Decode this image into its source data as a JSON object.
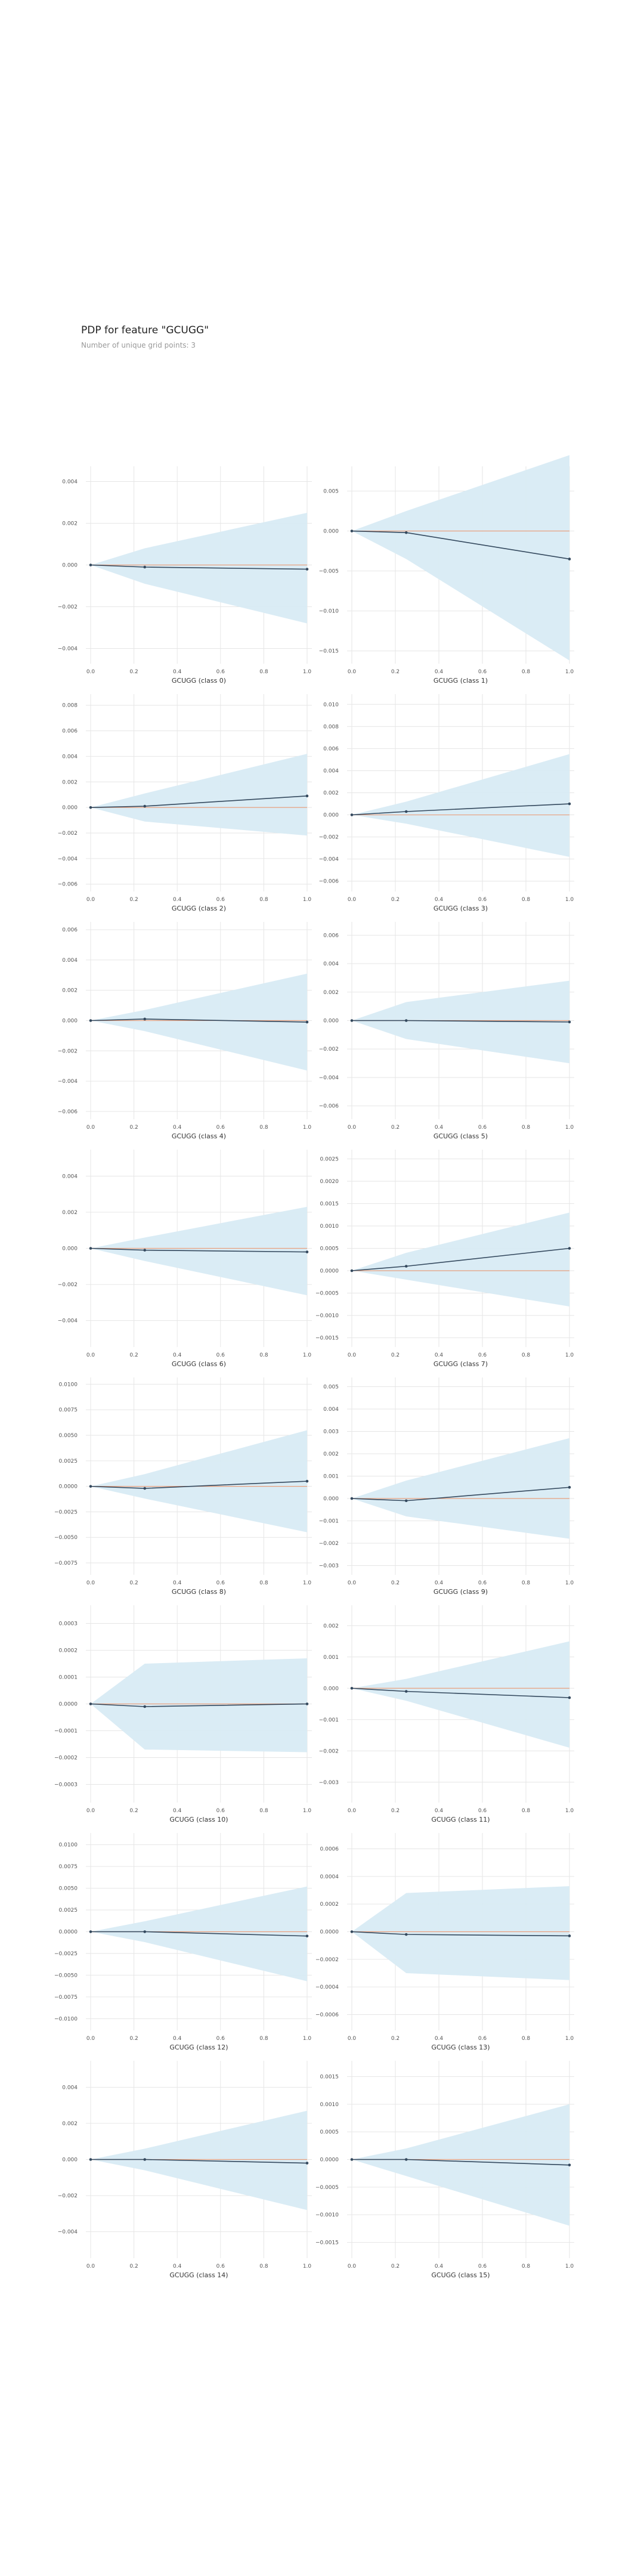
{
  "header": {
    "title": "PDP for feature \"GCUGG\"",
    "subtitle": "Number of unique grid points: 3"
  },
  "colors": {
    "band": "#d8ebf4",
    "line": "#34495e",
    "baseline": "#e8a07e",
    "grid": "#e6e6e6"
  },
  "chart_data": [
    {
      "type": "line",
      "xlabel": "GCUGG (class 0)",
      "x": [
        0,
        0.25,
        1
      ],
      "y": [
        0,
        -0.0001,
        -0.0002
      ],
      "upper": [
        0,
        0.0008,
        0.0025
      ],
      "lower": [
        0,
        -0.0009,
        -0.0028
      ],
      "ylim": [
        -0.0045,
        0.0045
      ],
      "yticks": [
        -0.004,
        -0.002,
        0,
        0.002,
        0.004
      ],
      "ytick_labels": [
        "−0.004",
        "−0.002",
        "0.000",
        "0.002",
        "0.004"
      ],
      "xticks": [
        0,
        0.2,
        0.4,
        0.6,
        0.8,
        1
      ],
      "xtick_labels": [
        "0.0",
        "0.2",
        "0.4",
        "0.6",
        "0.8",
        "1.0"
      ]
    },
    {
      "type": "line",
      "xlabel": "GCUGG (class 1)",
      "x": [
        0,
        0.25,
        1
      ],
      "y": [
        0,
        -0.0002,
        -0.0035
      ],
      "upper": [
        0,
        0.0025,
        0.0095
      ],
      "lower": [
        0,
        -0.0035,
        -0.0162
      ],
      "ylim": [
        -0.016,
        0.0075
      ],
      "yticks": [
        -0.015,
        -0.01,
        -0.005,
        0,
        0.005
      ],
      "ytick_labels": [
        "−0.015",
        "−0.010",
        "−0.005",
        "0.000",
        "0.005"
      ],
      "xticks": [
        0,
        0.2,
        0.4,
        0.6,
        0.8,
        1
      ],
      "xtick_labels": [
        "0.0",
        "0.2",
        "0.4",
        "0.6",
        "0.8",
        "1.0"
      ]
    },
    {
      "type": "line",
      "xlabel": "GCUGG (class 2)",
      "x": [
        0,
        0.25,
        1
      ],
      "y": [
        0,
        0.0001,
        0.0009
      ],
      "upper": [
        0,
        0.0011,
        0.0042
      ],
      "lower": [
        0,
        -0.0011,
        -0.0022
      ],
      "ylim": [
        -0.0062,
        0.0085
      ],
      "yticks": [
        -0.006,
        -0.004,
        -0.002,
        0,
        0.002,
        0.004,
        0.006,
        0.008
      ],
      "ytick_labels": [
        "−0.006",
        "−0.004",
        "−0.002",
        "0.000",
        "0.002",
        "0.004",
        "0.006",
        "0.008"
      ],
      "xticks": [
        0,
        0.2,
        0.4,
        0.6,
        0.8,
        1
      ],
      "xtick_labels": [
        "0.0",
        "0.2",
        "0.4",
        "0.6",
        "0.8",
        "1.0"
      ]
    },
    {
      "type": "line",
      "xlabel": "GCUGG (class 3)",
      "x": [
        0,
        0.25,
        1
      ],
      "y": [
        0,
        0.0003,
        0.001
      ],
      "upper": [
        0,
        0.0012,
        0.0055
      ],
      "lower": [
        0,
        -0.0008,
        -0.0038
      ],
      "ylim": [
        -0.0065,
        0.0105
      ],
      "yticks": [
        -0.006,
        -0.004,
        -0.002,
        0,
        0.002,
        0.004,
        0.006,
        0.008,
        0.01
      ],
      "ytick_labels": [
        "−0.006",
        "−0.004",
        "−0.002",
        "0.000",
        "0.002",
        "0.004",
        "0.006",
        "0.008",
        "0.010"
      ],
      "xticks": [
        0,
        0.2,
        0.4,
        0.6,
        0.8,
        1
      ],
      "xtick_labels": [
        "0.0",
        "0.2",
        "0.4",
        "0.6",
        "0.8",
        "1.0"
      ]
    },
    {
      "type": "line",
      "xlabel": "GCUGG (class 4)",
      "x": [
        0,
        0.25,
        1
      ],
      "y": [
        0,
        0.0001,
        -0.0001
      ],
      "upper": [
        0,
        0.0007,
        0.0031
      ],
      "lower": [
        0,
        -0.0007,
        -0.0033
      ],
      "ylim": [
        -0.0062,
        0.0062
      ],
      "yticks": [
        -0.006,
        -0.004,
        -0.002,
        0,
        0.002,
        0.004,
        0.006
      ],
      "ytick_labels": [
        "−0.006",
        "−0.004",
        "−0.002",
        "0.000",
        "0.002",
        "0.004",
        "0.006"
      ],
      "xticks": [
        0,
        0.2,
        0.4,
        0.6,
        0.8,
        1
      ],
      "xtick_labels": [
        "0.0",
        "0.2",
        "0.4",
        "0.6",
        "0.8",
        "1.0"
      ]
    },
    {
      "type": "line",
      "xlabel": "GCUGG (class 5)",
      "x": [
        0,
        0.25,
        1
      ],
      "y": [
        0,
        0,
        -0.0001
      ],
      "upper": [
        0,
        0.0013,
        0.0028
      ],
      "lower": [
        0,
        -0.0013,
        -0.003
      ],
      "ylim": [
        -0.0066,
        0.0066
      ],
      "yticks": [
        -0.006,
        -0.004,
        -0.002,
        0,
        0.002,
        0.004,
        0.006
      ],
      "ytick_labels": [
        "−0.006",
        "−0.004",
        "−0.002",
        "0.000",
        "0.002",
        "0.004",
        "0.006"
      ],
      "xticks": [
        0,
        0.2,
        0.4,
        0.6,
        0.8,
        1
      ],
      "xtick_labels": [
        "0.0",
        "0.2",
        "0.4",
        "0.6",
        "0.8",
        "1.0"
      ]
    },
    {
      "type": "line",
      "xlabel": "GCUGG (class 6)",
      "x": [
        0,
        0.25,
        1
      ],
      "y": [
        0,
        -0.0001,
        -0.0002
      ],
      "upper": [
        0,
        0.0006,
        0.0023
      ],
      "lower": [
        0,
        -0.0007,
        -0.0026
      ],
      "ylim": [
        -0.0052,
        0.0052
      ],
      "yticks": [
        -0.004,
        -0.002,
        0,
        0.002,
        0.004
      ],
      "ytick_labels": [
        "−0.004",
        "−0.002",
        "0.000",
        "0.002",
        "0.004"
      ],
      "xticks": [
        0,
        0.2,
        0.4,
        0.6,
        0.8,
        1
      ],
      "xtick_labels": [
        "0.0",
        "0.2",
        "0.4",
        "0.6",
        "0.8",
        "1.0"
      ]
    },
    {
      "type": "line",
      "xlabel": "GCUGG (class 7)",
      "x": [
        0,
        0.25,
        1
      ],
      "y": [
        0,
        0.0001,
        0.0005
      ],
      "upper": [
        0,
        0.0004,
        0.0013
      ],
      "lower": [
        0,
        -0.0002,
        -0.0008
      ],
      "ylim": [
        -0.0016,
        0.0026
      ],
      "yticks": [
        -0.0015,
        -0.001,
        -0.0005,
        0,
        0.0005,
        0.001,
        0.0015,
        0.002,
        0.0025
      ],
      "ytick_labels": [
        "−0.0015",
        "−0.0010",
        "−0.0005",
        "0.0000",
        "0.0005",
        "0.0010",
        "0.0015",
        "0.0020",
        "0.0025"
      ],
      "xticks": [
        0,
        0.2,
        0.4,
        0.6,
        0.8,
        1
      ],
      "xtick_labels": [
        "0.0",
        "0.2",
        "0.4",
        "0.6",
        "0.8",
        "1.0"
      ]
    },
    {
      "type": "line",
      "xlabel": "GCUGG (class 8)",
      "x": [
        0,
        0.25,
        1
      ],
      "y": [
        0,
        -0.0002,
        0.0005
      ],
      "upper": [
        0,
        0.0012,
        0.0055
      ],
      "lower": [
        0,
        -0.0012,
        -0.0045
      ],
      "ylim": [
        -0.0082,
        0.0102
      ],
      "yticks": [
        -0.0075,
        -0.005,
        -0.0025,
        0,
        0.0025,
        0.005,
        0.0075,
        0.01
      ],
      "ytick_labels": [
        "−0.0075",
        "−0.0050",
        "−0.0025",
        "0.0000",
        "0.0025",
        "0.0050",
        "0.0075",
        "0.0100"
      ],
      "xticks": [
        0,
        0.2,
        0.4,
        0.6,
        0.8,
        1
      ],
      "xtick_labels": [
        "0.0",
        "0.2",
        "0.4",
        "0.6",
        "0.8",
        "1.0"
      ]
    },
    {
      "type": "line",
      "xlabel": "GCUGG (class 9)",
      "x": [
        0,
        0.25,
        1
      ],
      "y": [
        0,
        -0.0001,
        0.0005
      ],
      "upper": [
        0,
        0.0008,
        0.0027
      ],
      "lower": [
        0,
        -0.0008,
        -0.0018
      ],
      "ylim": [
        -0.0032,
        0.0052
      ],
      "yticks": [
        -0.003,
        -0.002,
        -0.001,
        0,
        0.001,
        0.002,
        0.003,
        0.004,
        0.005
      ],
      "ytick_labels": [
        "−0.003",
        "−0.002",
        "−0.001",
        "0.000",
        "0.001",
        "0.002",
        "0.003",
        "0.004",
        "0.005"
      ],
      "xticks": [
        0,
        0.2,
        0.4,
        0.6,
        0.8,
        1
      ],
      "xtick_labels": [
        "0.0",
        "0.2",
        "0.4",
        "0.6",
        "0.8",
        "1.0"
      ]
    },
    {
      "type": "line",
      "xlabel": "GCUGG (class 10)",
      "x": [
        0,
        0.25,
        1
      ],
      "y": [
        0,
        -1e-05,
        0
      ],
      "upper": [
        0,
        0.00015,
        0.00017
      ],
      "lower": [
        0,
        -0.00017,
        -0.00018
      ],
      "ylim": [
        -0.00035,
        0.00035
      ],
      "yticks": [
        -0.0003,
        -0.0002,
        -0.0001,
        0,
        0.0001,
        0.0002,
        0.0003
      ],
      "ytick_labels": [
        "−0.0003",
        "−0.0002",
        "−0.0001",
        "0.0000",
        "0.0001",
        "0.0002",
        "0.0003"
      ],
      "xticks": [
        0,
        0.2,
        0.4,
        0.6,
        0.8,
        1
      ],
      "xtick_labels": [
        "0.0",
        "0.2",
        "0.4",
        "0.6",
        "0.8",
        "1.0"
      ]
    },
    {
      "type": "line",
      "xlabel": "GCUGG (class 11)",
      "x": [
        0,
        0.25,
        1
      ],
      "y": [
        0,
        -0.0001,
        -0.0003
      ],
      "upper": [
        0,
        0.0003,
        0.0015
      ],
      "lower": [
        0,
        -0.0004,
        -0.0019
      ],
      "ylim": [
        -0.0035,
        0.0025
      ],
      "yticks": [
        -0.003,
        -0.002,
        -0.001,
        0,
        0.001,
        0.002
      ],
      "ytick_labels": [
        "−0.003",
        "−0.002",
        "−0.001",
        "0.000",
        "0.001",
        "0.002"
      ],
      "xticks": [
        0,
        0.2,
        0.4,
        0.6,
        0.8,
        1
      ],
      "xtick_labels": [
        "0.0",
        "0.2",
        "0.4",
        "0.6",
        "0.8",
        "1.0"
      ]
    },
    {
      "type": "line",
      "xlabel": "GCUGG (class 12)",
      "x": [
        0,
        0.25,
        1
      ],
      "y": [
        0,
        0,
        -0.0005
      ],
      "upper": [
        0,
        0.0012,
        0.0052
      ],
      "lower": [
        0,
        -0.0012,
        -0.0057
      ],
      "ylim": [
        -0.0108,
        0.0108
      ],
      "yticks": [
        -0.01,
        -0.0075,
        -0.005,
        -0.0025,
        0,
        0.0025,
        0.005,
        0.0075,
        0.01
      ],
      "ytick_labels": [
        "−0.0100",
        "−0.0075",
        "−0.0050",
        "−0.0025",
        "0.0000",
        "0.0025",
        "0.0050",
        "0.0075",
        "0.0100"
      ],
      "xticks": [
        0,
        0.2,
        0.4,
        0.6,
        0.8,
        1
      ],
      "xtick_labels": [
        "0.0",
        "0.2",
        "0.4",
        "0.6",
        "0.8",
        "1.0"
      ]
    },
    {
      "type": "line",
      "xlabel": "GCUGG (class 13)",
      "x": [
        0,
        0.25,
        1
      ],
      "y": [
        0,
        -2e-05,
        -3e-05
      ],
      "upper": [
        0,
        0.00028,
        0.00033
      ],
      "lower": [
        0,
        -0.0003,
        -0.00035
      ],
      "ylim": [
        -0.00068,
        0.00068
      ],
      "yticks": [
        -0.0006,
        -0.0004,
        -0.0002,
        0,
        0.0002,
        0.0004,
        0.0006
      ],
      "ytick_labels": [
        "−0.0006",
        "−0.0004",
        "−0.0002",
        "0.0000",
        "0.0002",
        "0.0004",
        "0.0006"
      ],
      "xticks": [
        0,
        0.2,
        0.4,
        0.6,
        0.8,
        1
      ],
      "xtick_labels": [
        "0.0",
        "0.2",
        "0.4",
        "0.6",
        "0.8",
        "1.0"
      ]
    },
    {
      "type": "line",
      "xlabel": "GCUGG (class 14)",
      "x": [
        0,
        0.25,
        1
      ],
      "y": [
        0,
        0,
        -0.0002
      ],
      "upper": [
        0,
        0.0006,
        0.0027
      ],
      "lower": [
        0,
        -0.0006,
        -0.0028
      ],
      "ylim": [
        -0.0052,
        0.0052
      ],
      "yticks": [
        -0.004,
        -0.002,
        0,
        0.002,
        0.004
      ],
      "ytick_labels": [
        "−0.004",
        "−0.002",
        "0.000",
        "0.002",
        "0.004"
      ],
      "xticks": [
        0,
        0.2,
        0.4,
        0.6,
        0.8,
        1
      ],
      "xtick_labels": [
        "0.0",
        "0.2",
        "0.4",
        "0.6",
        "0.8",
        "1.0"
      ]
    },
    {
      "type": "line",
      "xlabel": "GCUGG (class 15)",
      "x": [
        0,
        0.25,
        1
      ],
      "y": [
        0,
        0,
        -0.0001
      ],
      "upper": [
        0,
        0.0002,
        0.001
      ],
      "lower": [
        0,
        -0.0003,
        -0.0012
      ],
      "ylim": [
        -0.0017,
        0.0017
      ],
      "yticks": [
        -0.0015,
        -0.001,
        -0.0005,
        0,
        0.0005,
        0.001,
        0.0015
      ],
      "ytick_labels": [
        "−0.0015",
        "−0.0010",
        "−0.0005",
        "0.0000",
        "0.0005",
        "0.0010",
        "0.0015"
      ],
      "xticks": [
        0,
        0.2,
        0.4,
        0.6,
        0.8,
        1
      ],
      "xtick_labels": [
        "0.0",
        "0.2",
        "0.4",
        "0.6",
        "0.8",
        "1.0"
      ]
    }
  ]
}
